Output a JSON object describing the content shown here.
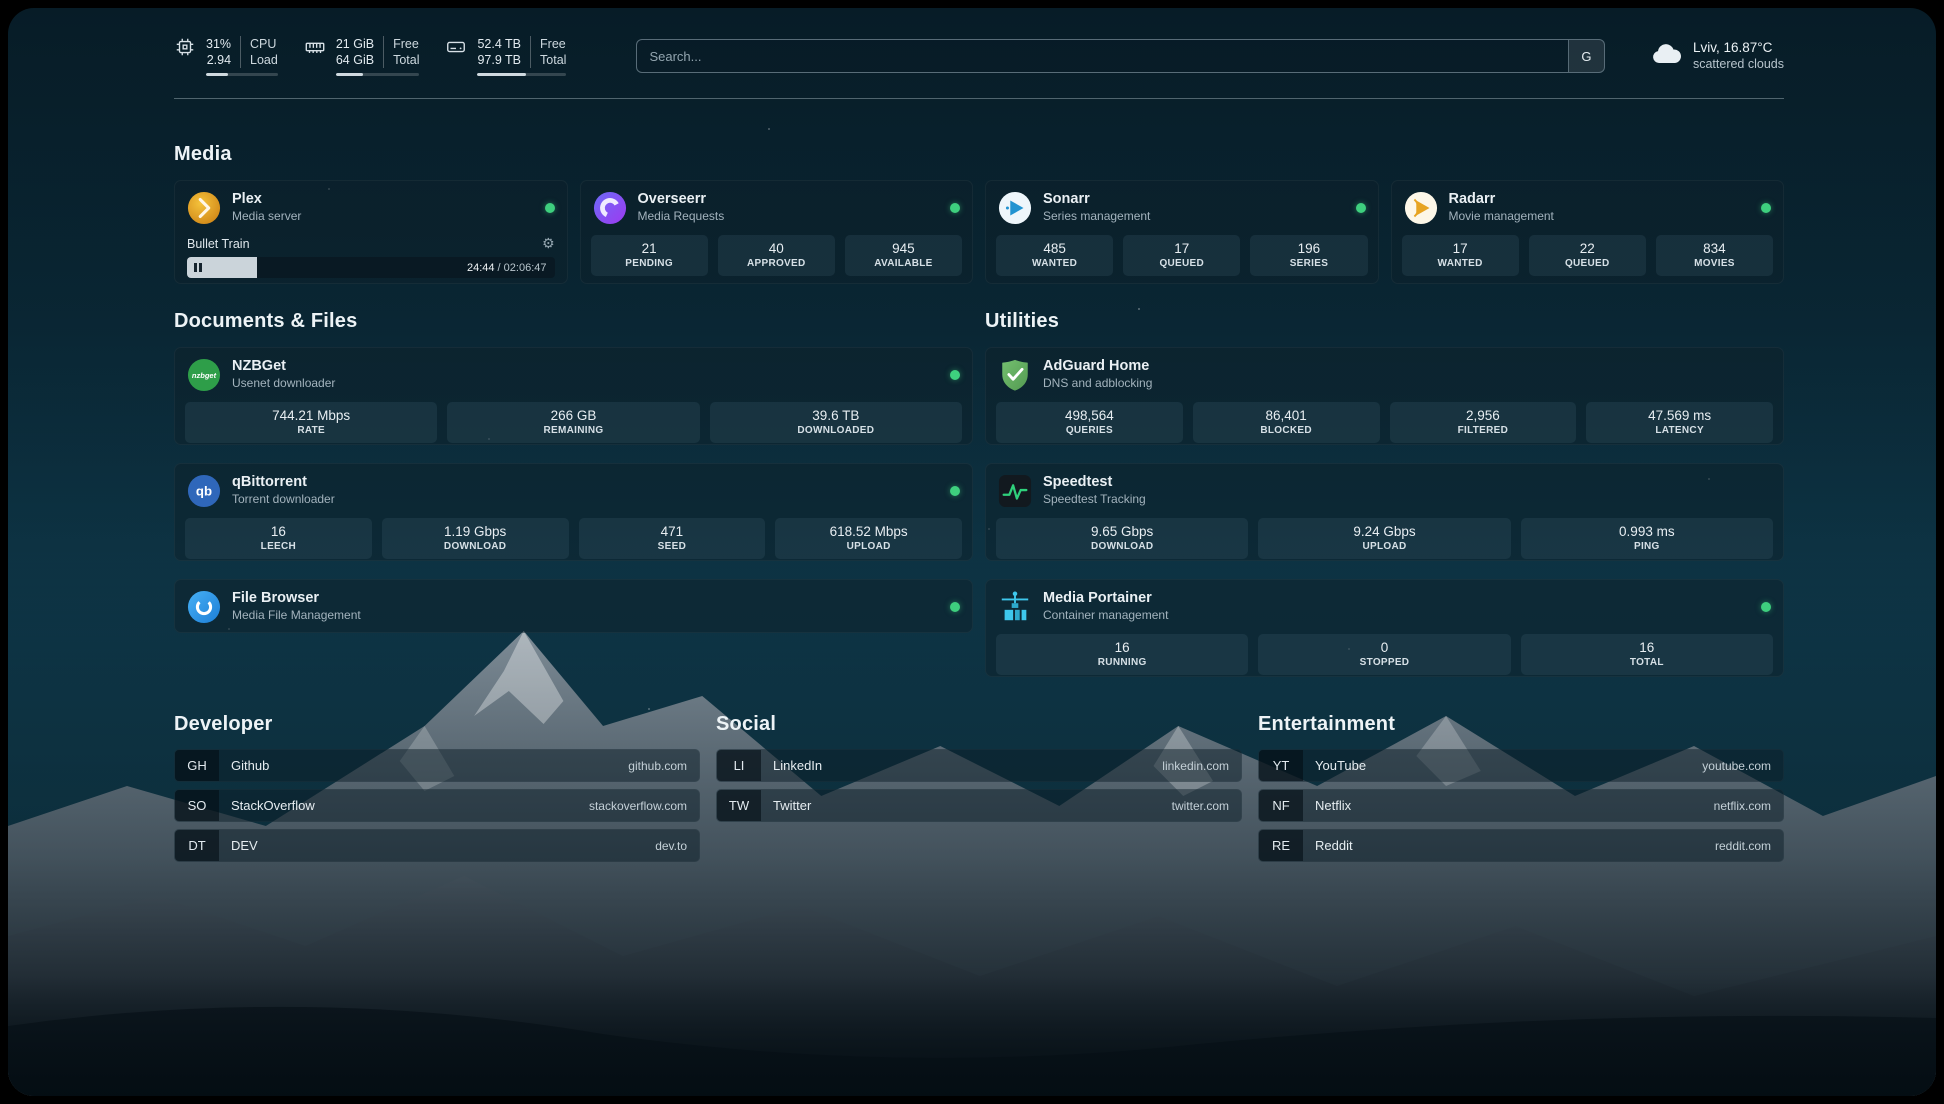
{
  "topbar": {
    "cpu": {
      "value1": "31%",
      "value2": "2.94",
      "label1": "CPU",
      "label2": "Load",
      "progress": 31
    },
    "memory": {
      "value1": "21 GiB",
      "value2": "64 GiB",
      "label1": "Free",
      "label2": "Total",
      "progress": 33
    },
    "disk": {
      "value1": "52.4 TB",
      "value2": "97.9 TB",
      "label1": "Free",
      "label2": "Total",
      "progress": 54
    },
    "search": {
      "placeholder": "Search...",
      "provider": "G"
    },
    "weather": {
      "location": "Lviv, 16.87°C",
      "condition": "scattered clouds"
    }
  },
  "sections": {
    "media": "Media",
    "documents": "Documents & Files",
    "utilities": "Utilities"
  },
  "media": {
    "plex": {
      "name": "Plex",
      "subtitle": "Media server",
      "now_playing": "Bullet Train",
      "time_elapsed": "24:44",
      "time_total": " / 02:06:47",
      "progress": 19
    },
    "overseerr": {
      "name": "Overseerr",
      "subtitle": "Media Requests",
      "stats": [
        {
          "value": "21",
          "label": "PENDING"
        },
        {
          "value": "40",
          "label": "APPROVED"
        },
        {
          "value": "945",
          "label": "AVAILABLE"
        }
      ]
    },
    "sonarr": {
      "name": "Sonarr",
      "subtitle": "Series management",
      "stats": [
        {
          "value": "485",
          "label": "WANTED"
        },
        {
          "value": "17",
          "label": "QUEUED"
        },
        {
          "value": "196",
          "label": "SERIES"
        }
      ]
    },
    "radarr": {
      "name": "Radarr",
      "subtitle": "Movie management",
      "stats": [
        {
          "value": "17",
          "label": "WANTED"
        },
        {
          "value": "22",
          "label": "QUEUED"
        },
        {
          "value": "834",
          "label": "MOVIES"
        }
      ]
    }
  },
  "documents": {
    "nzbget": {
      "name": "NZBGet",
      "subtitle": "Usenet downloader",
      "icon_text": "nzbget",
      "stats": [
        {
          "value": "744.21 Mbps",
          "label": "RATE"
        },
        {
          "value": "266 GB",
          "label": "REMAINING"
        },
        {
          "value": "39.6 TB",
          "label": "DOWNLOADED"
        }
      ]
    },
    "qbittorrent": {
      "name": "qBittorrent",
      "subtitle": "Torrent downloader",
      "icon_text": "qb",
      "stats": [
        {
          "value": "16",
          "label": "LEECH"
        },
        {
          "value": "1.19 Gbps",
          "label": "DOWNLOAD"
        },
        {
          "value": "471",
          "label": "SEED"
        },
        {
          "value": "618.52 Mbps",
          "label": "UPLOAD"
        }
      ]
    },
    "filebrowser": {
      "name": "File Browser",
      "subtitle": "Media File Management"
    }
  },
  "utilities": {
    "adguard": {
      "name": "AdGuard Home",
      "subtitle": "DNS and adblocking",
      "stats": [
        {
          "value": "498,564",
          "label": "QUERIES"
        },
        {
          "value": "86,401",
          "label": "BLOCKED"
        },
        {
          "value": "2,956",
          "label": "FILTERED"
        },
        {
          "value": "47.569 ms",
          "label": "LATENCY"
        }
      ]
    },
    "speedtest": {
      "name": "Speedtest",
      "subtitle": "Speedtest Tracking",
      "stats": [
        {
          "value": "9.65 Gbps",
          "label": "DOWNLOAD"
        },
        {
          "value": "9.24 Gbps",
          "label": "UPLOAD"
        },
        {
          "value": "0.993 ms",
          "label": "PING"
        }
      ]
    },
    "portainer": {
      "name": "Media Portainer",
      "subtitle": "Container management",
      "stats": [
        {
          "value": "16",
          "label": "RUNNING"
        },
        {
          "value": "0",
          "label": "STOPPED"
        },
        {
          "value": "16",
          "label": "TOTAL"
        }
      ]
    }
  },
  "bookmarks": {
    "developer": {
      "title": "Developer",
      "items": [
        {
          "abbr": "GH",
          "name": "Github",
          "url": "github.com"
        },
        {
          "abbr": "SO",
          "name": "StackOverflow",
          "url": "stackoverflow.com"
        },
        {
          "abbr": "DT",
          "name": "DEV",
          "url": "dev.to"
        }
      ]
    },
    "social": {
      "title": "Social",
      "items": [
        {
          "abbr": "LI",
          "name": "LinkedIn",
          "url": "linkedin.com"
        },
        {
          "abbr": "TW",
          "name": "Twitter",
          "url": "twitter.com"
        }
      ]
    },
    "entertainment": {
      "title": "Entertainment",
      "items": [
        {
          "abbr": "YT",
          "name": "YouTube",
          "url": "youtube.com"
        },
        {
          "abbr": "NF",
          "name": "Netflix",
          "url": "netflix.com"
        },
        {
          "abbr": "RE",
          "name": "Reddit",
          "url": "reddit.com"
        }
      ]
    }
  }
}
